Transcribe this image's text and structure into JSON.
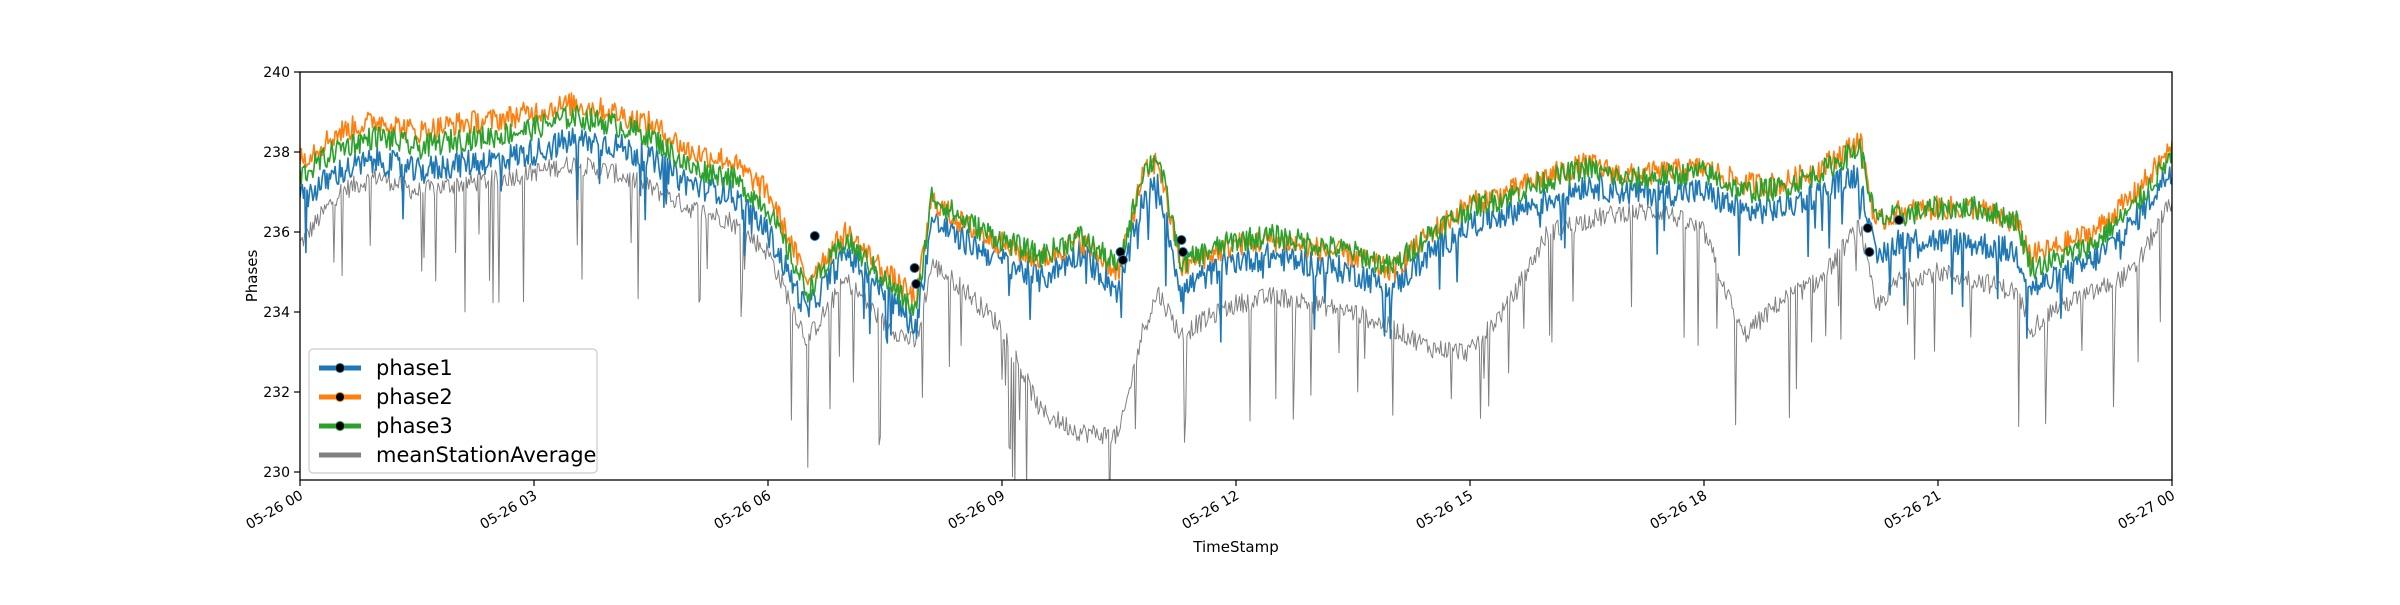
{
  "chart_data": {
    "type": "line",
    "title": "",
    "xlabel": "TimeStamp",
    "ylabel": "Phases",
    "x_range": [
      "2024-05-26 00:00",
      "2024-05-27 00:00"
    ],
    "x_ticks": [
      {
        "t": 0,
        "label": "05-26 00"
      },
      {
        "t": 3,
        "label": "05-26 03"
      },
      {
        "t": 6,
        "label": "05-26 06"
      },
      {
        "t": 9,
        "label": "05-26 09"
      },
      {
        "t": 12,
        "label": "05-26 12"
      },
      {
        "t": 15,
        "label": "05-26 15"
      },
      {
        "t": 18,
        "label": "05-26 18"
      },
      {
        "t": 21,
        "label": "05-26 21"
      },
      {
        "t": 24,
        "label": "05-27 00"
      }
    ],
    "y_ticks": [
      230,
      232,
      234,
      236,
      238,
      240
    ],
    "ylim": [
      229.8,
      240
    ],
    "grid": false,
    "legend_position": "lower-left",
    "x_hours": [
      0,
      0.5,
      1,
      1.5,
      2,
      2.5,
      3,
      3.5,
      4,
      4.5,
      5,
      5.5,
      6,
      6.5,
      7,
      7.5,
      7.9,
      8.1,
      8.5,
      9,
      9.5,
      10,
      10.5,
      10.8,
      11,
      11.3,
      11.5,
      12,
      12.5,
      13,
      13.5,
      14,
      14.5,
      15,
      15.5,
      16,
      16.5,
      17,
      17.5,
      18,
      18.5,
      19,
      19.5,
      20,
      20.2,
      20.5,
      21,
      21.5,
      22,
      22.2,
      22.5,
      23,
      23.5,
      24
    ],
    "series": [
      {
        "name": "phase1",
        "color": "#1f77b4",
        "values": [
          236.8,
          237.5,
          237.8,
          237.5,
          237.7,
          237.8,
          238.0,
          238.3,
          238.2,
          237.8,
          237.2,
          237.0,
          236.0,
          234.0,
          235.5,
          234.5,
          233.6,
          236.3,
          235.8,
          235.3,
          234.8,
          235.5,
          234.5,
          236.8,
          237.2,
          234.5,
          234.8,
          235.3,
          235.4,
          235.2,
          235.0,
          234.6,
          235.5,
          236.2,
          236.5,
          236.8,
          237.2,
          237.0,
          237.0,
          237.0,
          236.5,
          236.6,
          237.0,
          237.5,
          235.3,
          235.8,
          235.8,
          235.7,
          235.5,
          234.6,
          234.8,
          235.3,
          236.2,
          237.6
        ]
      },
      {
        "name": "phase2",
        "color": "#ff7f0e",
        "values": [
          237.8,
          238.5,
          238.8,
          238.5,
          238.7,
          238.8,
          239.0,
          239.2,
          239.0,
          238.7,
          238.0,
          237.8,
          237.0,
          234.8,
          236.0,
          235.0,
          234.3,
          236.8,
          236.2,
          235.7,
          235.3,
          235.8,
          235.0,
          237.4,
          237.8,
          235.1,
          235.3,
          235.7,
          235.8,
          235.6,
          235.4,
          235.0,
          236.0,
          236.7,
          237.0,
          237.4,
          237.7,
          237.4,
          237.5,
          237.6,
          237.2,
          237.2,
          237.6,
          238.3,
          236.2,
          236.5,
          236.6,
          236.6,
          236.2,
          235.4,
          235.6,
          236.0,
          236.9,
          238.1
        ]
      },
      {
        "name": "phase3",
        "color": "#2ca02c",
        "values": [
          237.4,
          238.1,
          238.4,
          238.1,
          238.3,
          238.4,
          238.6,
          238.9,
          238.7,
          238.4,
          237.6,
          237.4,
          236.6,
          234.5,
          235.8,
          234.8,
          234.0,
          236.9,
          236.3,
          235.8,
          235.4,
          235.9,
          235.1,
          237.5,
          237.9,
          235.2,
          235.4,
          235.8,
          235.9,
          235.7,
          235.5,
          235.1,
          236.0,
          236.6,
          236.9,
          237.3,
          237.6,
          237.3,
          237.4,
          237.5,
          237.0,
          237.1,
          237.5,
          238.1,
          236.3,
          236.4,
          236.6,
          236.6,
          236.3,
          235.1,
          235.3,
          235.7,
          236.6,
          237.9
        ]
      },
      {
        "name": "meanStationAverage",
        "color": "#808080",
        "values": [
          235.7,
          237.0,
          237.4,
          237.0,
          237.2,
          237.3,
          237.5,
          237.7,
          237.5,
          237.1,
          236.6,
          236.3,
          235.5,
          233.3,
          234.8,
          233.7,
          233.2,
          235.2,
          234.6,
          233.6,
          231.5,
          231.0,
          230.9,
          233.5,
          234.5,
          233.4,
          233.7,
          234.2,
          234.4,
          234.2,
          234.0,
          233.6,
          233.1,
          233.0,
          234.2,
          236.0,
          236.3,
          236.5,
          236.5,
          236.0,
          233.4,
          234.3,
          234.8,
          236.2,
          234.1,
          234.8,
          235.0,
          234.8,
          234.5,
          233.6,
          234.1,
          234.5,
          235.0,
          236.8
        ]
      }
    ],
    "event_markers": [
      {
        "x": 6.6,
        "y": 235.9
      },
      {
        "x": 7.88,
        "y": 235.1
      },
      {
        "x": 7.9,
        "y": 234.7
      },
      {
        "x": 10.52,
        "y": 235.5
      },
      {
        "x": 10.55,
        "y": 235.3
      },
      {
        "x": 11.3,
        "y": 235.8
      },
      {
        "x": 11.32,
        "y": 235.5
      },
      {
        "x": 20.1,
        "y": 236.1
      },
      {
        "x": 20.12,
        "y": 235.5
      },
      {
        "x": 20.5,
        "y": 236.3
      }
    ],
    "legend": [
      {
        "label": "phase1",
        "color": "#1f77b4",
        "marker": true
      },
      {
        "label": "phase2",
        "color": "#ff7f0e",
        "marker": true
      },
      {
        "label": "phase3",
        "color": "#2ca02c",
        "marker": true
      },
      {
        "label": "meanStationAverage",
        "color": "#808080",
        "marker": false
      }
    ]
  }
}
